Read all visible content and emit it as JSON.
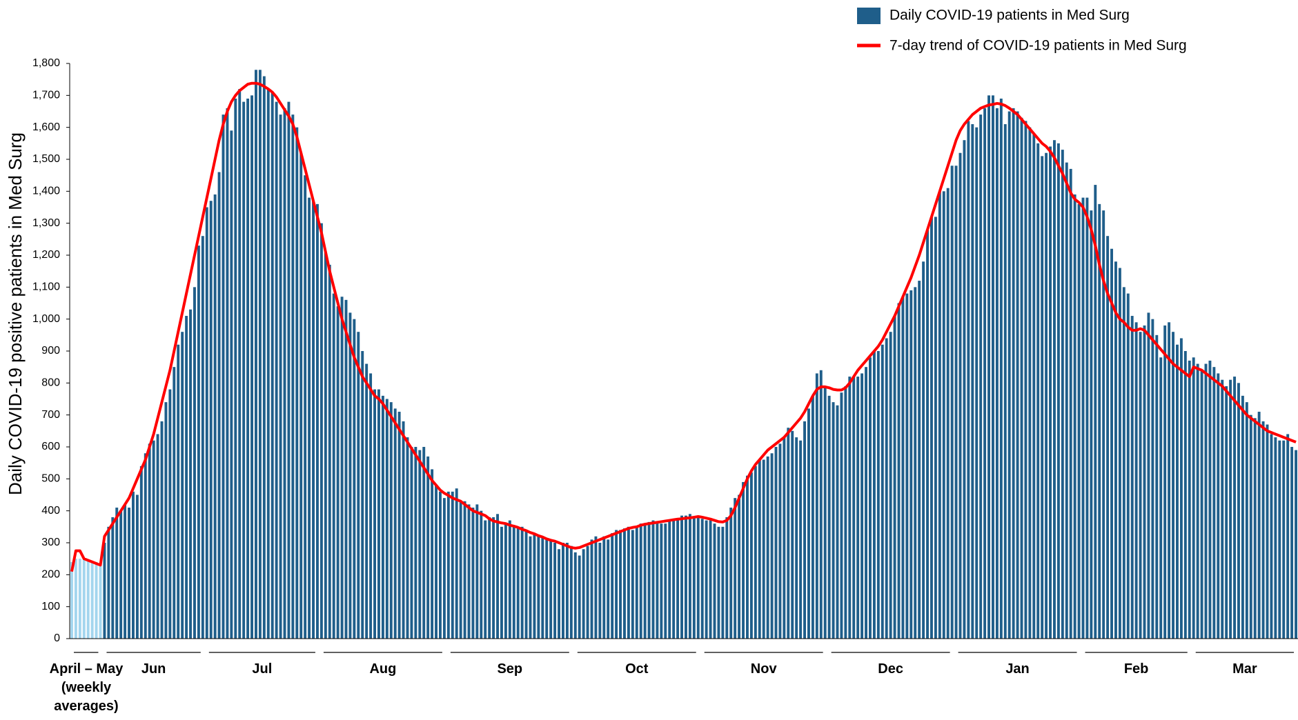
{
  "chart_data": {
    "type": "bar",
    "y_label": "Daily COVID-19 positive patients in Med Surg",
    "ylim": [
      0,
      1800
    ],
    "yticks": [
      0,
      100,
      200,
      300,
      400,
      500,
      600,
      700,
      800,
      900,
      {
        "value": 1000,
        "label": "1,000"
      },
      {
        "value": 1100,
        "label": "1,100"
      },
      {
        "value": 1200,
        "label": "1,200"
      },
      {
        "value": 1300,
        "label": "1,300"
      },
      {
        "value": 1400,
        "label": "1,400"
      },
      {
        "value": 1500,
        "label": "1,500"
      },
      {
        "value": 1600,
        "label": "1,600"
      },
      {
        "value": 1700,
        "label": "1,700"
      },
      {
        "value": 1800,
        "label": "1,800"
      }
    ],
    "legend": "top-right",
    "groups": [
      {
        "label": "April – May (weekly averages)",
        "count": 8,
        "color": "#a3d5ee"
      },
      {
        "label": "Jun",
        "count": 25
      },
      {
        "label": "Jul",
        "count": 28
      },
      {
        "label": "Aug",
        "count": 31
      },
      {
        "label": "Sep",
        "count": 31
      },
      {
        "label": "Oct",
        "count": 31
      },
      {
        "label": "Nov",
        "count": 31
      },
      {
        "label": "Dec",
        "count": 31
      },
      {
        "label": "Jan",
        "count": 31
      },
      {
        "label": "Feb",
        "count": 27
      },
      {
        "label": "Mar",
        "count": 26
      }
    ],
    "series": [
      {
        "name": "Daily COVID-19 patients in Med Surg",
        "type": "bar",
        "color": "#1f5e8a",
        "values": [
          240,
          250,
          250,
          250,
          245,
          240,
          240,
          235,
          300,
          350,
          380,
          410,
          400,
          420,
          410,
          460,
          450,
          540,
          580,
          610,
          620,
          640,
          680,
          740,
          780,
          850,
          920,
          960,
          1010,
          1030,
          1100,
          1230,
          1260,
          1350,
          1370,
          1390,
          1460,
          1640,
          1660,
          1590,
          1690,
          1720,
          1680,
          1690,
          1700,
          1780,
          1780,
          1760,
          1720,
          1710,
          1680,
          1640,
          1660,
          1680,
          1640,
          1600,
          1520,
          1450,
          1380,
          1370,
          1360,
          1300,
          1210,
          1170,
          1080,
          1040,
          1070,
          1060,
          1020,
          1000,
          960,
          900,
          860,
          830,
          780,
          780,
          760,
          750,
          740,
          720,
          710,
          680,
          630,
          600,
          600,
          590,
          600,
          570,
          530,
          480,
          460,
          440,
          460,
          460,
          470,
          430,
          430,
          420,
          410,
          420,
          400,
          370,
          380,
          380,
          390,
          350,
          360,
          370,
          350,
          350,
          350,
          340,
          320,
          330,
          320,
          320,
          310,
          310,
          300,
          280,
          300,
          300,
          290,
          270,
          260,
          280,
          290,
          310,
          320,
          300,
          320,
          310,
          330,
          340,
          340,
          345,
          350,
          340,
          350,
          360,
          355,
          365,
          370,
          365,
          360,
          360,
          370,
          370,
          375,
          385,
          385,
          390,
          380,
          380,
          375,
          370,
          370,
          360,
          350,
          350,
          380,
          410,
          440,
          450,
          490,
          510,
          520,
          540,
          560,
          560,
          570,
          580,
          600,
          610,
          630,
          660,
          650,
          630,
          620,
          680,
          720,
          760,
          830,
          840,
          790,
          760,
          740,
          730,
          770,
          790,
          820,
          820,
          820,
          830,
          850,
          880,
          900,
          900,
          920,
          940,
          960,
          1010,
          1050,
          1070,
          1080,
          1090,
          1100,
          1120,
          1180,
          1280,
          1320,
          1320,
          1400,
          1400,
          1410,
          1480,
          1480,
          1520,
          1560,
          1620,
          1610,
          1600,
          1640,
          1660,
          1700,
          1700,
          1660,
          1690,
          1610,
          1650,
          1660,
          1650,
          1630,
          1620,
          1600,
          1580,
          1550,
          1510,
          1520,
          1540,
          1560,
          1550,
          1530,
          1490,
          1470,
          1390,
          1360,
          1380,
          1380,
          1340,
          1420,
          1360,
          1340,
          1260,
          1220,
          1180,
          1160,
          1100,
          1080,
          1010,
          990,
          960,
          980,
          1020,
          1000,
          950,
          880,
          980,
          990,
          960,
          920,
          940,
          900,
          870,
          880,
          860,
          840,
          860,
          870,
          850,
          830,
          810,
          790,
          810,
          820,
          800,
          760,
          740,
          700,
          690,
          710,
          680,
          670,
          640,
          630,
          620,
          620,
          640,
          600,
          590
        ]
      },
      {
        "name": "7-day trend of COVID-19 patients in Med Surg",
        "type": "line",
        "color": "#ff0000",
        "values": [
          210,
          275,
          275,
          250,
          245,
          240,
          235,
          230,
          320,
          340,
          360,
          380,
          400,
          420,
          440,
          470,
          500,
          530,
          560,
          600,
          640,
          690,
          740,
          790,
          840,
          900,
          960,
          1020,
          1080,
          1140,
          1200,
          1260,
          1320,
          1380,
          1440,
          1500,
          1560,
          1610,
          1650,
          1680,
          1700,
          1715,
          1725,
          1735,
          1738,
          1738,
          1735,
          1728,
          1720,
          1710,
          1695,
          1675,
          1655,
          1635,
          1610,
          1570,
          1520,
          1470,
          1420,
          1370,
          1320,
          1270,
          1210,
          1150,
          1100,
          1050,
          1000,
          960,
          920,
          880,
          850,
          820,
          800,
          780,
          760,
          750,
          735,
          715,
          695,
          675,
          655,
          635,
          615,
          595,
          575,
          555,
          535,
          515,
          495,
          480,
          465,
          455,
          448,
          440,
          435,
          430,
          420,
          410,
          400,
          395,
          390,
          385,
          375,
          368,
          365,
          362,
          360,
          355,
          352,
          348,
          342,
          338,
          332,
          328,
          322,
          318,
          312,
          308,
          305,
          300,
          295,
          290,
          285,
          283,
          285,
          290,
          295,
          300,
          305,
          310,
          315,
          320,
          325,
          330,
          335,
          340,
          345,
          348,
          350,
          355,
          358,
          360,
          362,
          364,
          366,
          368,
          370,
          372,
          374,
          375,
          377,
          378,
          380,
          382,
          380,
          377,
          374,
          370,
          366,
          365,
          370,
          385,
          410,
          440,
          470,
          500,
          525,
          545,
          560,
          575,
          590,
          600,
          610,
          620,
          630,
          645,
          660,
          675,
          690,
          710,
          735,
          760,
          780,
          788,
          788,
          785,
          780,
          778,
          778,
          785,
          800,
          820,
          840,
          855,
          870,
          885,
          900,
          915,
          935,
          960,
          985,
          1010,
          1040,
          1070,
          1100,
          1130,
          1165,
          1200,
          1240,
          1280,
          1320,
          1360,
          1400,
          1440,
          1480,
          1520,
          1560,
          1590,
          1610,
          1625,
          1640,
          1650,
          1660,
          1665,
          1670,
          1672,
          1675,
          1673,
          1668,
          1660,
          1650,
          1640,
          1625,
          1610,
          1595,
          1580,
          1565,
          1550,
          1540,
          1525,
          1505,
          1480,
          1455,
          1425,
          1395,
          1375,
          1365,
          1350,
          1320,
          1280,
          1230,
          1170,
          1120,
          1080,
          1050,
          1020,
          1000,
          990,
          975,
          965,
          965,
          970,
          965,
          950,
          935,
          920,
          905,
          890,
          875,
          860,
          850,
          840,
          830,
          820,
          850,
          845,
          840,
          830,
          820,
          810,
          800,
          790,
          775,
          760,
          745,
          730,
          715,
          700,
          690,
          680,
          670,
          660,
          650,
          645,
          640,
          635,
          630,
          625,
          620,
          615
        ]
      }
    ]
  }
}
